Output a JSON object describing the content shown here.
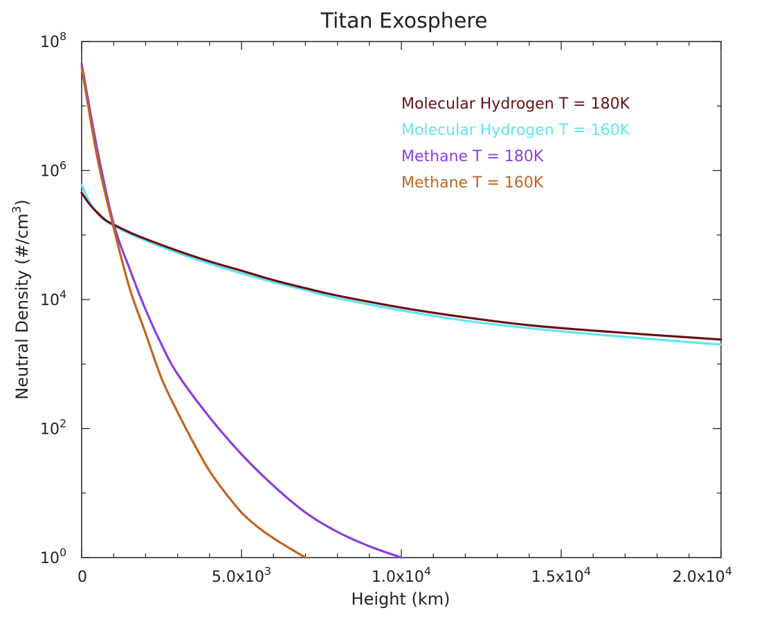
{
  "chart_data": {
    "type": "line",
    "title": "Titan Exosphere",
    "xlabel": "Height (km)",
    "ylabel": "Neutral Density (#/cm³)",
    "y_scale": "log",
    "xlim": [
      0,
      20000
    ],
    "ylim": [
      1,
      100000000
    ],
    "x_ticks": [
      {
        "value": 0,
        "mantissa": "0",
        "exp": ""
      },
      {
        "value": 5000,
        "mantissa": "5.0x10",
        "exp": "3"
      },
      {
        "value": 10000,
        "mantissa": "1.0x10",
        "exp": "4"
      },
      {
        "value": 15000,
        "mantissa": "1.5x10",
        "exp": "4"
      },
      {
        "value": 20000,
        "mantissa": "2.0x10",
        "exp": "4"
      }
    ],
    "x_minor_ticks": [
      1000,
      2000,
      3000,
      4000,
      6000,
      7000,
      8000,
      9000,
      11000,
      12000,
      13000,
      14000,
      16000,
      17000,
      18000,
      19000
    ],
    "y_ticks": [
      {
        "value": 1,
        "base": "10",
        "exp": "0"
      },
      {
        "value": 100,
        "base": "10",
        "exp": "2"
      },
      {
        "value": 10000,
        "base": "10",
        "exp": "4"
      },
      {
        "value": 1000000,
        "base": "10",
        "exp": "6"
      },
      {
        "value": 100000000,
        "base": "10",
        "exp": "8"
      }
    ],
    "y_minor_ticks": [
      10,
      1000,
      100000,
      10000000
    ],
    "legend_position": "top-right",
    "series": [
      {
        "name": "Molecular Hydrogen T = 180K",
        "color": "#6b0f14",
        "x": [
          0,
          250,
          500,
          750,
          1000,
          1500,
          2000,
          3000,
          4000,
          5000,
          6000,
          7000,
          8000,
          10000,
          12000,
          14000,
          16000,
          18000,
          20000
        ],
        "y": [
          450000,
          300000,
          220000,
          170000,
          145000,
          110000,
          87000,
          57000,
          39000,
          28000,
          20000,
          15000,
          11500,
          7500,
          5300,
          4000,
          3300,
          2800,
          2400
        ]
      },
      {
        "name": "Molecular Hydrogen T = 160K",
        "color": "#5ee6f2",
        "x": [
          0,
          250,
          500,
          750,
          1000,
          1500,
          2000,
          3000,
          4000,
          5000,
          6000,
          7000,
          8000,
          10000,
          12000,
          14000,
          16000,
          18000,
          20000
        ],
        "y": [
          600000,
          320000,
          215000,
          165000,
          140000,
          105000,
          82000,
          53000,
          36000,
          25500,
          18500,
          14000,
          10500,
          6800,
          4700,
          3600,
          2900,
          2400,
          2000
        ]
      },
      {
        "name": "Methane T = 180K",
        "color": "#8a3ee0",
        "x": [
          0,
          500,
          1000,
          1500,
          2000,
          2500,
          3000,
          4000,
          5000,
          6000,
          7000,
          8000,
          9000,
          10000
        ],
        "y": [
          45000000,
          2000000,
          150000,
          30000,
          7000,
          2000,
          700,
          150,
          40,
          13,
          5,
          2.5,
          1.5,
          1
        ]
      },
      {
        "name": "Methane T = 160K",
        "color": "#c0641e",
        "x": [
          0,
          500,
          1000,
          1500,
          2000,
          2500,
          3000,
          3500,
          4000,
          4500,
          5000,
          5500,
          6000,
          6500,
          7000
        ],
        "y": [
          40000000,
          1500000,
          130000,
          15000,
          3000,
          600,
          180,
          60,
          22,
          10,
          5,
          3,
          2,
          1.4,
          1
        ]
      }
    ]
  }
}
